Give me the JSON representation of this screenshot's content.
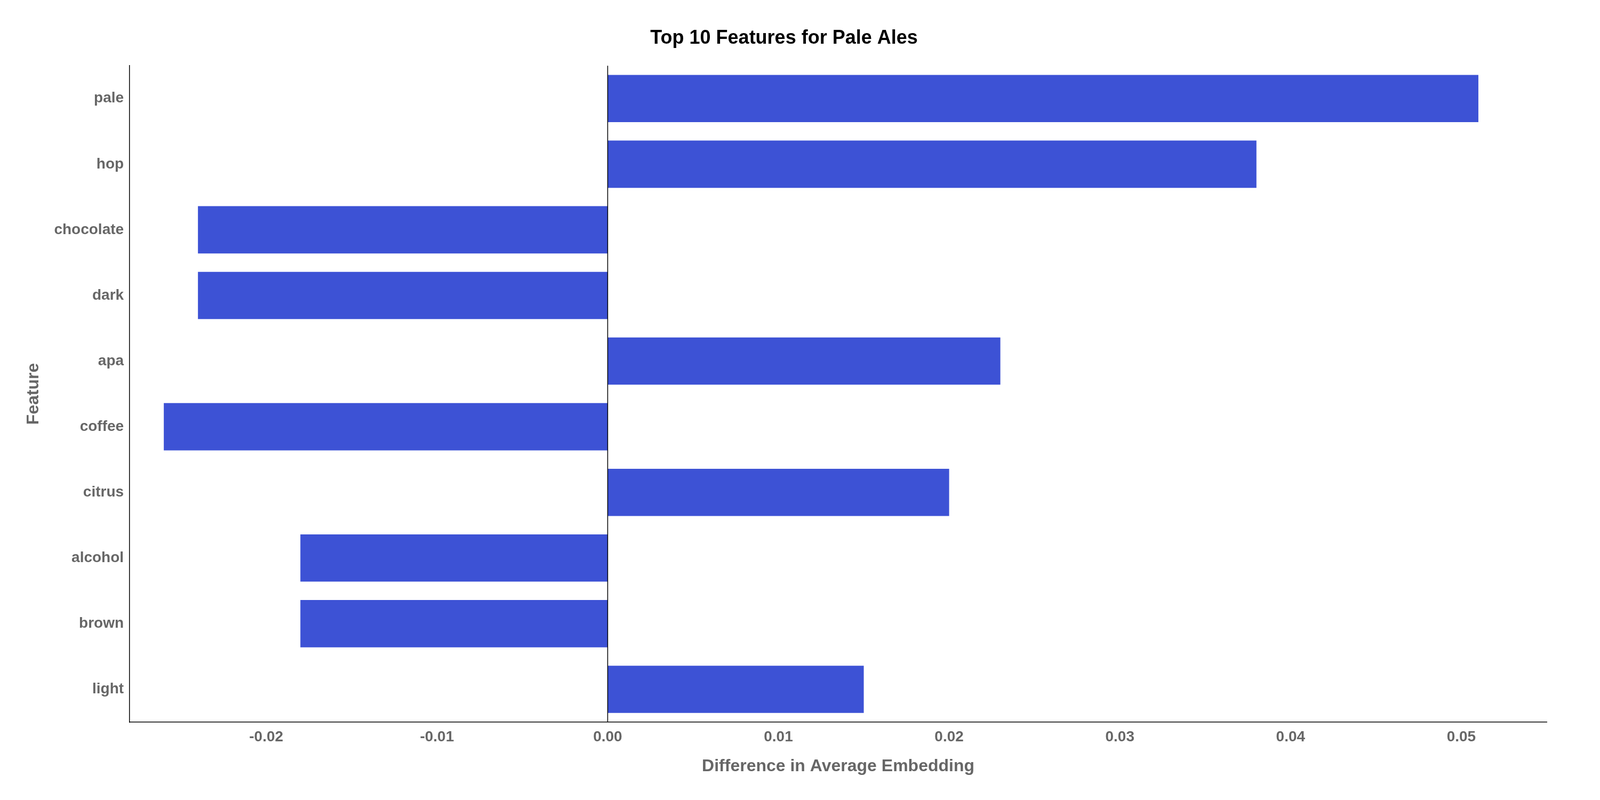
{
  "chart_data": {
    "type": "bar",
    "orientation": "horizontal",
    "title": "Top 10 Features for Pale Ales",
    "xlabel": "Difference in Average Embedding",
    "ylabel": "Feature",
    "categories": [
      "pale",
      "hop",
      "chocolate",
      "dark",
      "apa",
      "coffee",
      "citrus",
      "alcohol",
      "brown",
      "light"
    ],
    "values": [
      0.051,
      0.038,
      -0.024,
      -0.024,
      0.023,
      -0.026,
      0.02,
      -0.018,
      -0.018,
      0.015
    ],
    "color": "#3d52d5",
    "xlim": [
      -0.028,
      0.055
    ],
    "xticks": [
      -0.02,
      -0.01,
      {
        "value": 0,
        "label": "0.00"
      },
      0.01,
      0.02,
      0.03,
      0.04,
      0.05
    ],
    "grid": false
  }
}
